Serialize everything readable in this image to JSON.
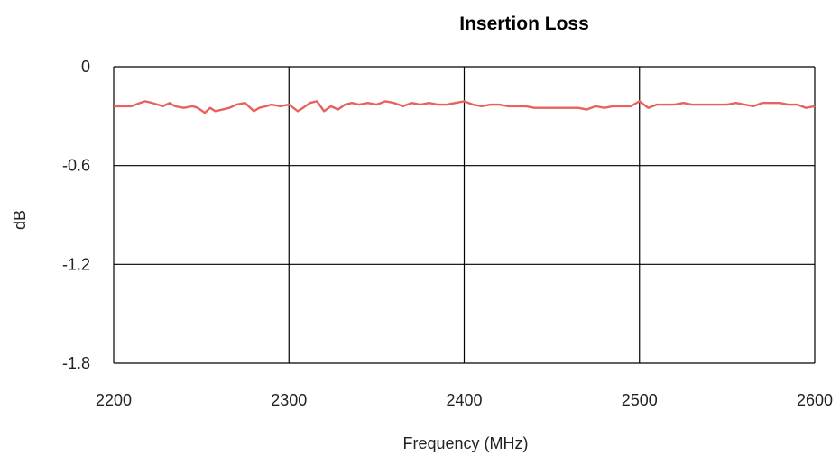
{
  "chart_data": {
    "type": "line",
    "title": "Insertion Loss",
    "xlabel": "Frequency (MHz)",
    "ylabel": "dB",
    "xlim": [
      2200,
      2600
    ],
    "ylim": [
      -1.8,
      0
    ],
    "xticks": [
      2200,
      2300,
      2400,
      2500,
      2600
    ],
    "yticks": [
      0,
      -0.6,
      -1.2,
      -1.8
    ],
    "xtick_labels": [
      "2200",
      "2300",
      "2400",
      "2500",
      "2600"
    ],
    "ytick_labels": [
      "0",
      "-0.6",
      "-1.2",
      "-1.8"
    ],
    "grid": true,
    "line_color": "#e8615f",
    "series": [
      {
        "x": [
          2200,
          2210,
          2215,
          2218,
          2222,
          2225,
          2228,
          2232,
          2235,
          2240,
          2245,
          2248,
          2252,
          2255,
          2258,
          2262,
          2266,
          2270,
          2275,
          2280,
          2283,
          2287,
          2290,
          2295,
          2300,
          2305,
          2308,
          2312,
          2316,
          2320,
          2324,
          2328,
          2332,
          2336,
          2340,
          2345,
          2350,
          2355,
          2360,
          2365,
          2370,
          2375,
          2380,
          2385,
          2390,
          2395,
          2400,
          2405,
          2410,
          2415,
          2420,
          2425,
          2430,
          2435,
          2440,
          2445,
          2450,
          2455,
          2460,
          2465,
          2470,
          2475,
          2480,
          2485,
          2490,
          2495,
          2500,
          2505,
          2510,
          2515,
          2520,
          2525,
          2530,
          2535,
          2540,
          2545,
          2550,
          2555,
          2560,
          2565,
          2570,
          2575,
          2580,
          2585,
          2590,
          2595,
          2600
        ],
        "y": [
          -0.24,
          -0.24,
          -0.22,
          -0.21,
          -0.22,
          -0.23,
          -0.24,
          -0.22,
          -0.24,
          -0.25,
          -0.24,
          -0.25,
          -0.28,
          -0.25,
          -0.27,
          -0.26,
          -0.25,
          -0.23,
          -0.22,
          -0.27,
          -0.25,
          -0.24,
          -0.23,
          -0.24,
          -0.23,
          -0.27,
          -0.25,
          -0.22,
          -0.21,
          -0.27,
          -0.24,
          -0.26,
          -0.23,
          -0.22,
          -0.23,
          -0.22,
          -0.23,
          -0.21,
          -0.22,
          -0.24,
          -0.22,
          -0.23,
          -0.22,
          -0.23,
          -0.23,
          -0.22,
          -0.21,
          -0.23,
          -0.24,
          -0.23,
          -0.23,
          -0.24,
          -0.24,
          -0.24,
          -0.25,
          -0.25,
          -0.25,
          -0.25,
          -0.25,
          -0.25,
          -0.26,
          -0.24,
          -0.25,
          -0.24,
          -0.24,
          -0.24,
          -0.21,
          -0.25,
          -0.23,
          -0.23,
          -0.23,
          -0.22,
          -0.23,
          -0.23,
          -0.23,
          -0.23,
          -0.23,
          -0.22,
          -0.23,
          -0.24,
          -0.22,
          -0.22,
          -0.22,
          -0.23,
          -0.23,
          -0.25,
          -0.24
        ]
      }
    ]
  }
}
